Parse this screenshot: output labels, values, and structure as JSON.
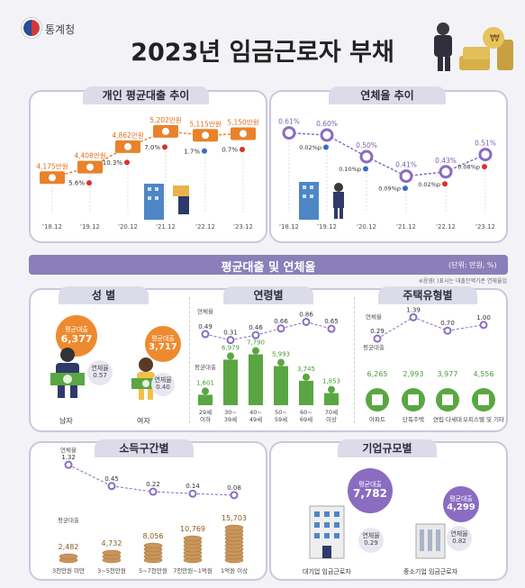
{
  "header": {
    "org": "통계청",
    "title": "2023년 임금근로자 부채"
  },
  "loan_trend": {
    "title": "개인 평균대출 추이",
    "years": [
      "'18.12",
      "'19.12",
      "'20.12",
      "'21.12",
      "'22.12",
      "'23.12"
    ],
    "values": [
      "4,175만원",
      "4,408만원",
      "4,862만원",
      "5,202만원",
      "5,115만원",
      "5,150만원"
    ],
    "changes": [
      "5.6%",
      "10.3%",
      "7.0%",
      "1.7%",
      "0.7%"
    ]
  },
  "delinq_trend": {
    "title": "연체율 추이",
    "years": [
      "'18.12",
      "'19.12",
      "'20.12",
      "'21.12",
      "'22.12",
      "'23.12"
    ],
    "values": [
      "0.61%",
      "0.60%",
      "0.50%",
      "0.41%",
      "0.43%",
      "0.51%"
    ],
    "changes": [
      "0.02%p",
      "0.10%p",
      "0.09%p",
      "0.02%p",
      "0.08%p"
    ]
  },
  "section": {
    "title": "평균대출 및 연체율",
    "unit": "(단위: 만원, %)",
    "note": "※음영(   )표시는 대출잔액기준 연체율임"
  },
  "gender": {
    "title": "성 별",
    "loan_label": "평균대출",
    "delinq_label": "연체율",
    "male": {
      "name": "남자",
      "loan": "6,377",
      "delinq": "0.57"
    },
    "female": {
      "name": "여자",
      "loan": "3,717",
      "delinq": "0.40"
    }
  },
  "age": {
    "title": "연령별",
    "delinq_label": "연체율",
    "loan_label": "평균대출",
    "groups": [
      "29세\n이하",
      "30~\n39세",
      "40~\n49세",
      "50~\n59세",
      "60~\n69세",
      "70세\n이상"
    ],
    "delinq": [
      "0.49",
      "0.31",
      "0.46",
      "0.66",
      "0.86",
      "0.65"
    ],
    "loans": [
      "1,601",
      "6,979",
      "7,790",
      "5,993",
      "3,745",
      "1,853"
    ]
  },
  "housing": {
    "title": "주택유형별",
    "delinq_label": "연체율",
    "loan_label": "평균대출",
    "types": [
      "아파트",
      "단독주택",
      "연립·다세대",
      "오피스텔 및 기타"
    ],
    "delinq": [
      "0.29",
      "1.39",
      "0.70",
      "1.00"
    ],
    "loans": [
      "6,265",
      "2,993",
      "3,977",
      "4,556"
    ]
  },
  "income": {
    "title": "소득구간별",
    "delinq_label": "연체율",
    "loan_label": "평균대출",
    "brackets": [
      "3천만원 미만",
      "3~5천만원",
      "5~7천만원",
      "7천만원~1억원",
      "1억원 이상"
    ],
    "delinq": [
      "1.32",
      "0.45",
      "0.22",
      "0.14",
      "0.08"
    ],
    "loans": [
      "2,482",
      "4,732",
      "8,056",
      "10,769",
      "15,703"
    ]
  },
  "firm": {
    "title": "기업규모별",
    "loan_label": "평균대출",
    "delinq_label": "연체율",
    "large": {
      "name": "대기업 임금근로자",
      "loan": "7,782",
      "delinq": "0.29"
    },
    "sme": {
      "name": "중소기업 임금근로자",
      "loan": "4,299",
      "delinq": "0.82"
    }
  },
  "colors": {
    "orange": "#e9822a",
    "purple": "#8a6cc0",
    "green": "#5aa643",
    "navy": "#2f3a6b",
    "tan": "#c9955a"
  }
}
